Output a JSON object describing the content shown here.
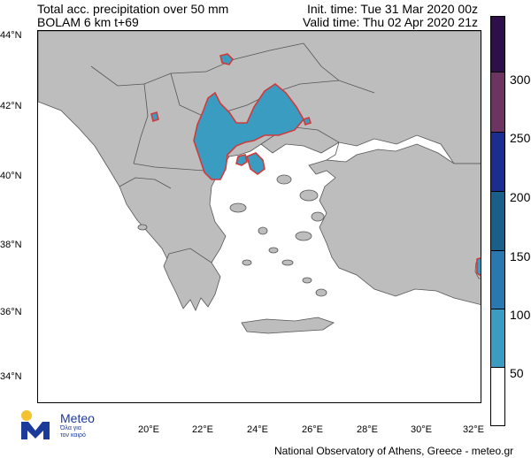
{
  "header": {
    "title_line1": "Total acc. precipitation over 50 mm",
    "title_line2": "BOLAM 6 km t+69",
    "init_time": "Init. time: Tue 31 Mar 2020 00z",
    "valid_time": "Valid time: Thu 02 Apr 2020 21z"
  },
  "map": {
    "lat_labels": [
      "44°N",
      "42°N",
      "40°N",
      "38°N",
      "36°N",
      "34°N"
    ],
    "lon_labels": [
      "20°E",
      "22°E",
      "24°E",
      "26°E",
      "28°E",
      "30°E",
      "32°E"
    ],
    "colors": {
      "sea": "#ffffff",
      "land": "#bdbdbd",
      "border": "#555555",
      "precip_fill": "#3a9cc0",
      "precip_outline": "#d23a3a"
    }
  },
  "colorbar": {
    "labels": [
      "300",
      "250",
      "200",
      "150",
      "100",
      "50"
    ],
    "segment_colors": [
      "#2e0f4a",
      "#6e3461",
      "#1b2e8f",
      "#1a5f8a",
      "#2a78b0",
      "#3a9cc0",
      "#ffffff"
    ]
  },
  "logo": {
    "name": "Meteo",
    "tagline_line1": "Όλα για",
    "tagline_line2": "τον καιρό"
  },
  "footer": {
    "credit": "National Observatory of Athens, Greece - meteo.gr"
  }
}
